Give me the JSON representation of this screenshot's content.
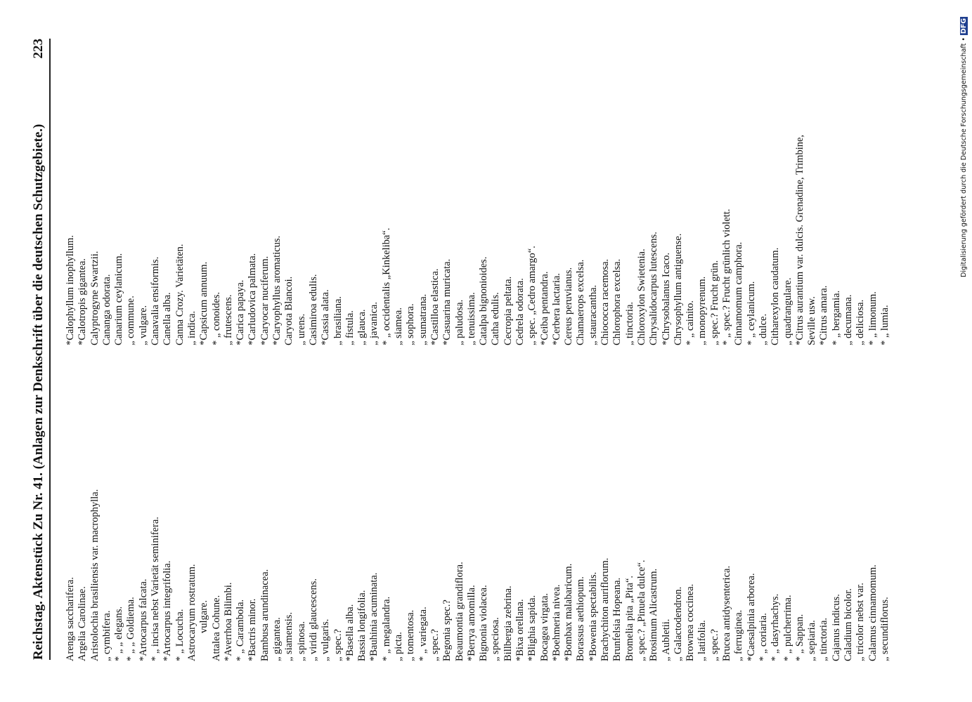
{
  "header": {
    "running_title": "Reichstag. Aktenstück Zu Nr. 41. (Anlagen zur Denkschrift über die deutschen Schutzgebiete.)",
    "page_number": "223"
  },
  "columns": [
    {
      "lines": [
        "Arenga saccharifera.",
        "Argelia Carolinae.",
        "Aristolochia brasiliensis var. macrophylla.",
        "„ cymbifera.",
        "* „ „ elegans.",
        "* „ „ Goldiema.",
        "*Artocarpus falcata.",
        "* „ incisa nebst Varietät seminifera.",
        "*Artocarpus integrifolia.",
        "* „ Locucha.",
        "Astrocaryum rostratum.",
        "vulgare.",
        "Attalea Cohune.",
        "*Averrhoa Bilimbi.",
        "* „ Carambola.",
        "*Bactris minor.",
        "Bambusa arundinacea.",
        "„ gigantea.",
        "„ siamensis.",
        "„ spinosa.",
        "„ viridi glaucescens.",
        "„ vulgaris.",
        "„ spec.?",
        "*Basella alba.",
        "Bassia longifolia.",
        "*Bauhinia acuminata.",
        "* „ megalandra.",
        "„ picta.",
        "„ tomentosa.",
        "* „ variegata.",
        "„ spec.?",
        "Begonia spec.?",
        "Beaumontia grandiflora.",
        "*Berrya amomilla.",
        "Bignonia violacea.",
        "„ speciosa.",
        "Billbergia zebrina.",
        "*Bixa orellana.",
        "*Blighia sapida.",
        "Bocagea virgata.",
        "*Boehmeria nivea.",
        "*Bombax malabaricum.",
        "Borassus aethiopum.",
        "*Bowenia spectabilis.",
        "Brachychiton auriflorum.",
        "Brunfelsia Hopeana.",
        "Bromelia pita „Pita“.",
        "„ spec.? „Pinuela dulce“.",
        "Brosimum Alicastrum.",
        "„ Aubletii.",
        "„ Galactodendron.",
        "Brownea coccinea.",
        "„ latifolia.",
        "„ spec.?",
        "Brucea antidysenterica.",
        "„ ferruginea.",
        "*Caesalpinia arborea.",
        "* „ coriaria.",
        "* „ dasyrhachys.",
        "* „ pulcherrima.",
        "* „ Sappan.",
        "„ sepiaria.",
        "„ tinctoria.",
        "Cajanus indicus.",
        "Caladium bicolor.",
        "„ tricolor nebst var.",
        "Calamus cinnamomum.",
        "„ secundiflorus."
      ]
    },
    {
      "lines": [
        "*Calophyllum inophyllum.",
        "*Calotropis gigantea.",
        "Calyptrogyne Swartzii.",
        "Cananga odorata.",
        "Canarium ceylanicum.",
        "„ commune.",
        "„ vulgare.",
        "Canavalia ensiformis.",
        "Canella alba.",
        "Canna Crozy. Varietäten.",
        "„ indica.",
        "*Capsicum annuum.",
        "* „ conoides.",
        "„ frutescens.",
        "*Carica papaya.",
        "*Carludovica palmata.",
        "*Caryocar nuciferum.",
        "*Caryophyllus aromaticus.",
        "Caryota Blancoi.",
        "„ urens.",
        "Casimiroa edulis.",
        "*Cassia alata.",
        "„ brasiliana.",
        "„ fistula.",
        "„ glauca.",
        "„ javanica.",
        "* „ occidentalis „Kinkeliba“.",
        "„ siamea.",
        "„ sophora.",
        "„ sumatrana.",
        "*Castilloa elastica.",
        "*Casuarina muricata.",
        "„ paludosa.",
        "„ tenuissima.",
        "Catalpa bignonioides.",
        "Catha edulis.",
        "Cecropia peltata.",
        "Cedrela odorata.",
        "„ spec. „Cedro amargo“.",
        "*Ceiba pentandra.",
        "*Cerbera lactaria.",
        "Cereus peruvianus.",
        "Chamaerops excelsa.",
        "„ stauracantha.",
        "Chiococca racemosa.",
        "Chlorophora excelsa.",
        "„ tinctoria.",
        "Chloroxylon Swietenia.",
        "Chrysalidocarpus lutescens.",
        "*Chrysobalanus Icaco.",
        "Chrysophyllum antiguense.",
        "* „ cainito.",
        "„ monopyrenum.",
        "„ spec.? Frucht grün.",
        "* „ spec.? Frucht grünlich violett.",
        "Cinnamomum camphora.",
        "* „ ceylanicum.",
        "„ dulce.",
        "Citharexylon caudatum.",
        "„ quadrangulare.",
        "*Citrus aurantium var. dulcis. Grenadine, Trimbine,",
        "Seville usw.",
        "*Citrus amara.",
        "* „ bergamia.",
        "„ decumana.",
        "„ deliciosa.",
        "* „ limonum.",
        "* „ lumia."
      ]
    }
  ],
  "footer": {
    "text": "Digitalisierung gefördert durch die Deutsche Forschungsgemeinschaft •",
    "logo": "DFG"
  }
}
